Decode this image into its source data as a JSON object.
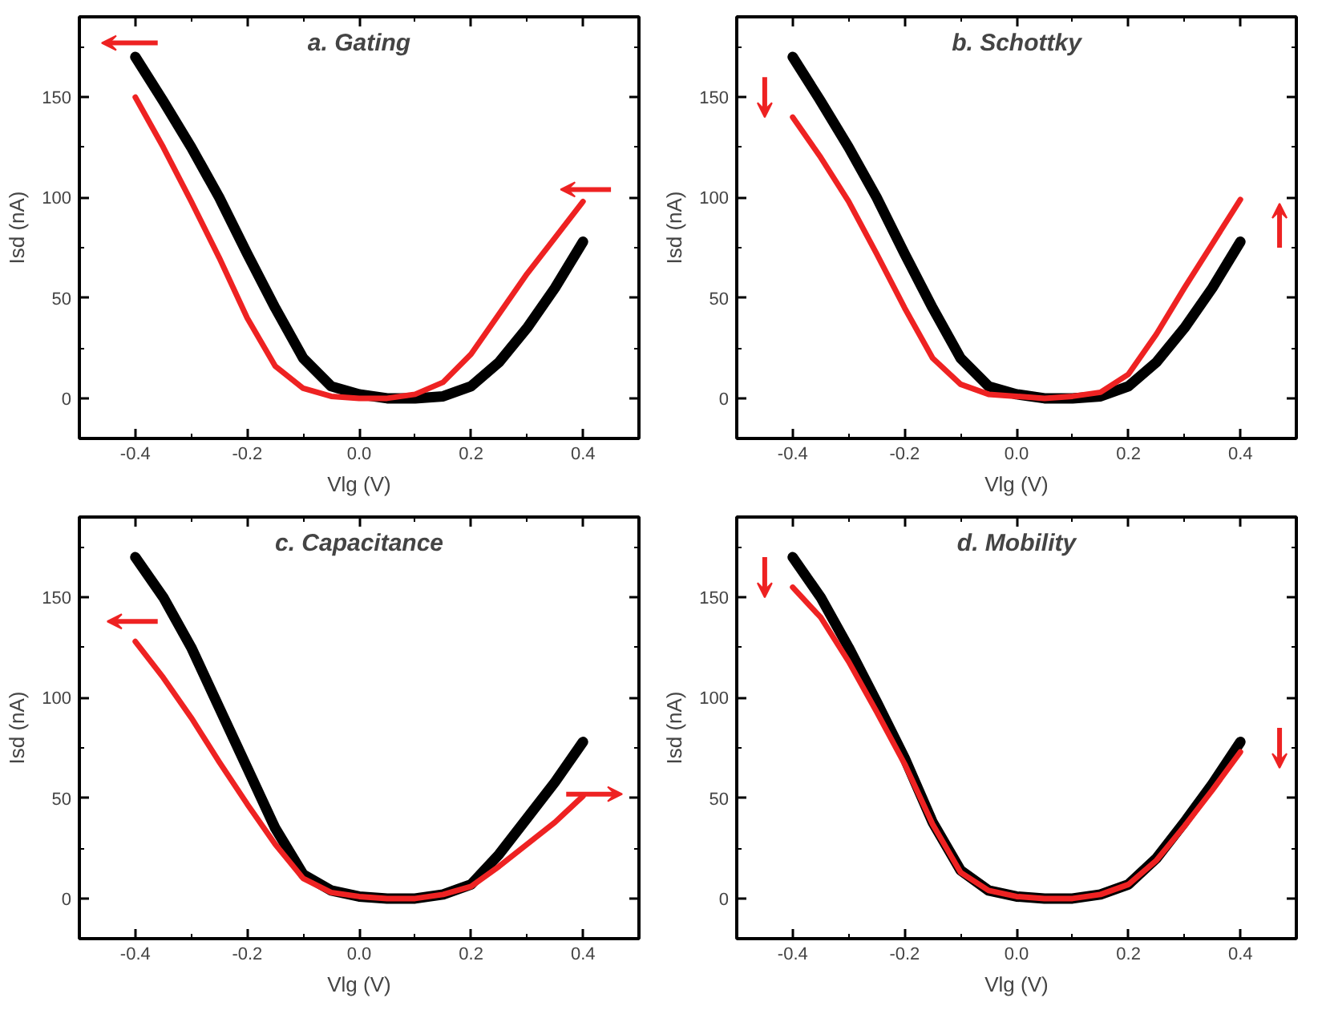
{
  "chart_data": [
    {
      "type": "line",
      "title": "a. Gating",
      "xlabel": "Vlg (V)",
      "ylabel": "Isd (nA)",
      "x": [
        -0.4,
        -0.35,
        -0.3,
        -0.25,
        -0.2,
        -0.15,
        -0.1,
        -0.05,
        0,
        0.05,
        0.1,
        0.15,
        0.2,
        0.25,
        0.3,
        0.35,
        0.4
      ],
      "series": [
        {
          "color": "#000000",
          "values": [
            170,
            148,
            125,
            100,
            72,
            45,
            20,
            6,
            2,
            0,
            0,
            1,
            6,
            18,
            35,
            55,
            78
          ]
        },
        {
          "color": "#ee2222",
          "values": [
            150,
            125,
            98,
            70,
            40,
            16,
            5,
            1,
            0,
            0,
            2,
            8,
            22,
            42,
            62,
            80,
            98
          ]
        }
      ],
      "xlim": [
        -0.5,
        0.5
      ],
      "ylim": [
        -20,
        190
      ],
      "xticks": [
        {
          "value": -0.4,
          "label": "-0.4"
        },
        {
          "value": -0.3,
          "label": null
        },
        {
          "value": -0.2,
          "label": "-0.2"
        },
        {
          "value": -0.1,
          "label": null
        },
        {
          "value": 0,
          "label": "0.0"
        },
        {
          "value": 0.1,
          "label": null
        },
        {
          "value": 0.2,
          "label": "0.2"
        },
        {
          "value": 0.3,
          "label": null
        },
        {
          "value": 0.4,
          "label": "0.4"
        }
      ],
      "yticks": [
        0,
        {
          "value": 25,
          "label": null
        },
        50,
        {
          "value": 75,
          "label": null
        },
        100,
        {
          "value": 125,
          "label": null
        },
        150,
        {
          "value": 175,
          "label": null
        }
      ]
    },
    {
      "type": "line",
      "title": "b. Schottky",
      "xlabel": "Vlg (V)",
      "ylabel": "Isd (nA)",
      "x": [
        -0.4,
        -0.35,
        -0.3,
        -0.25,
        -0.2,
        -0.15,
        -0.1,
        -0.05,
        0,
        0.05,
        0.1,
        0.15,
        0.2,
        0.25,
        0.3,
        0.35,
        0.4
      ],
      "series": [
        {
          "color": "#000000",
          "values": [
            170,
            148,
            125,
            100,
            72,
            45,
            20,
            6,
            2,
            0,
            0,
            1,
            6,
            18,
            35,
            55,
            78
          ]
        },
        {
          "color": "#ee2222",
          "values": [
            140,
            120,
            98,
            72,
            45,
            20,
            7,
            2,
            1,
            0,
            1,
            3,
            12,
            32,
            55,
            77,
            99
          ]
        }
      ],
      "xlim": [
        -0.5,
        0.5
      ],
      "ylim": [
        -20,
        190
      ],
      "xticks": [
        {
          "value": -0.4,
          "label": "-0.4"
        },
        {
          "value": -0.3,
          "label": null
        },
        {
          "value": -0.2,
          "label": "-0.2"
        },
        {
          "value": -0.1,
          "label": null
        },
        {
          "value": 0,
          "label": "0.0"
        },
        {
          "value": 0.1,
          "label": null
        },
        {
          "value": 0.2,
          "label": "0.2"
        },
        {
          "value": 0.3,
          "label": null
        },
        {
          "value": 0.4,
          "label": "0.4"
        }
      ],
      "yticks": [
        0,
        {
          "value": 25,
          "label": null
        },
        50,
        {
          "value": 75,
          "label": null
        },
        100,
        {
          "value": 125,
          "label": null
        },
        150,
        {
          "value": 175,
          "label": null
        }
      ]
    },
    {
      "type": "line",
      "title": "c. Capacitance",
      "xlabel": "Vlg (V)",
      "ylabel": "Isd (nA)",
      "x": [
        -0.4,
        -0.35,
        -0.3,
        -0.25,
        -0.2,
        -0.15,
        -0.1,
        -0.05,
        0,
        0.05,
        0.1,
        0.15,
        0.2,
        0.25,
        0.3,
        0.35,
        0.4
      ],
      "series": [
        {
          "color": "#000000",
          "values": [
            170,
            150,
            125,
            95,
            65,
            35,
            12,
            4,
            1,
            0,
            0,
            2,
            7,
            22,
            40,
            58,
            78
          ]
        },
        {
          "color": "#ee2222",
          "values": [
            128,
            110,
            90,
            68,
            47,
            27,
            10,
            3,
            1,
            0,
            0,
            2,
            6,
            16,
            27,
            38,
            51
          ]
        }
      ],
      "xlim": [
        -0.5,
        0.5
      ],
      "ylim": [
        -20,
        190
      ],
      "xticks": [
        {
          "value": -0.4,
          "label": "-0.4"
        },
        {
          "value": -0.3,
          "label": null
        },
        {
          "value": -0.2,
          "label": "-0.2"
        },
        {
          "value": -0.1,
          "label": null
        },
        {
          "value": 0,
          "label": "0.0"
        },
        {
          "value": 0.1,
          "label": null
        },
        {
          "value": 0.2,
          "label": "0.2"
        },
        {
          "value": 0.3,
          "label": null
        },
        {
          "value": 0.4,
          "label": "0.4"
        }
      ],
      "yticks": [
        0,
        {
          "value": 25,
          "label": null
        },
        50,
        {
          "value": 75,
          "label": null
        },
        100,
        {
          "value": 125,
          "label": null
        },
        150,
        {
          "value": 175,
          "label": null
        }
      ]
    },
    {
      "type": "line",
      "title": "d. Mobility",
      "xlabel": "Vlg (V)",
      "ylabel": "Isd (nA)",
      "x": [
        -0.4,
        -0.35,
        -0.3,
        -0.25,
        -0.2,
        -0.15,
        -0.1,
        -0.05,
        0,
        0.05,
        0.1,
        0.15,
        0.2,
        0.25,
        0.3,
        0.35,
        0.4
      ],
      "series": [
        {
          "color": "#000000",
          "values": [
            170,
            150,
            125,
            98,
            70,
            38,
            14,
            4,
            1,
            0,
            0,
            2,
            7,
            20,
            38,
            57,
            78
          ]
        },
        {
          "color": "#ee2222",
          "values": [
            155,
            140,
            118,
            93,
            67,
            37,
            13,
            4,
            1,
            0,
            0,
            2,
            7,
            19,
            36,
            54,
            73
          ]
        }
      ],
      "xlim": [
        -0.5,
        0.5
      ],
      "ylim": [
        -20,
        190
      ],
      "xticks": [
        {
          "value": -0.4,
          "label": "-0.4"
        },
        {
          "value": -0.3,
          "label": null
        },
        {
          "value": -0.2,
          "label": "-0.2"
        },
        {
          "value": -0.1,
          "label": null
        },
        {
          "value": 0,
          "label": "0.0"
        },
        {
          "value": 0.1,
          "label": null
        },
        {
          "value": 0.2,
          "label": "0.2"
        },
        {
          "value": 0.3,
          "label": null
        },
        {
          "value": 0.4,
          "label": "0.4"
        }
      ],
      "yticks": [
        0,
        {
          "value": 25,
          "label": null
        },
        50,
        {
          "value": 75,
          "label": null
        },
        100,
        {
          "value": 125,
          "label": null
        },
        150,
        {
          "value": 175,
          "label": null
        }
      ]
    }
  ]
}
